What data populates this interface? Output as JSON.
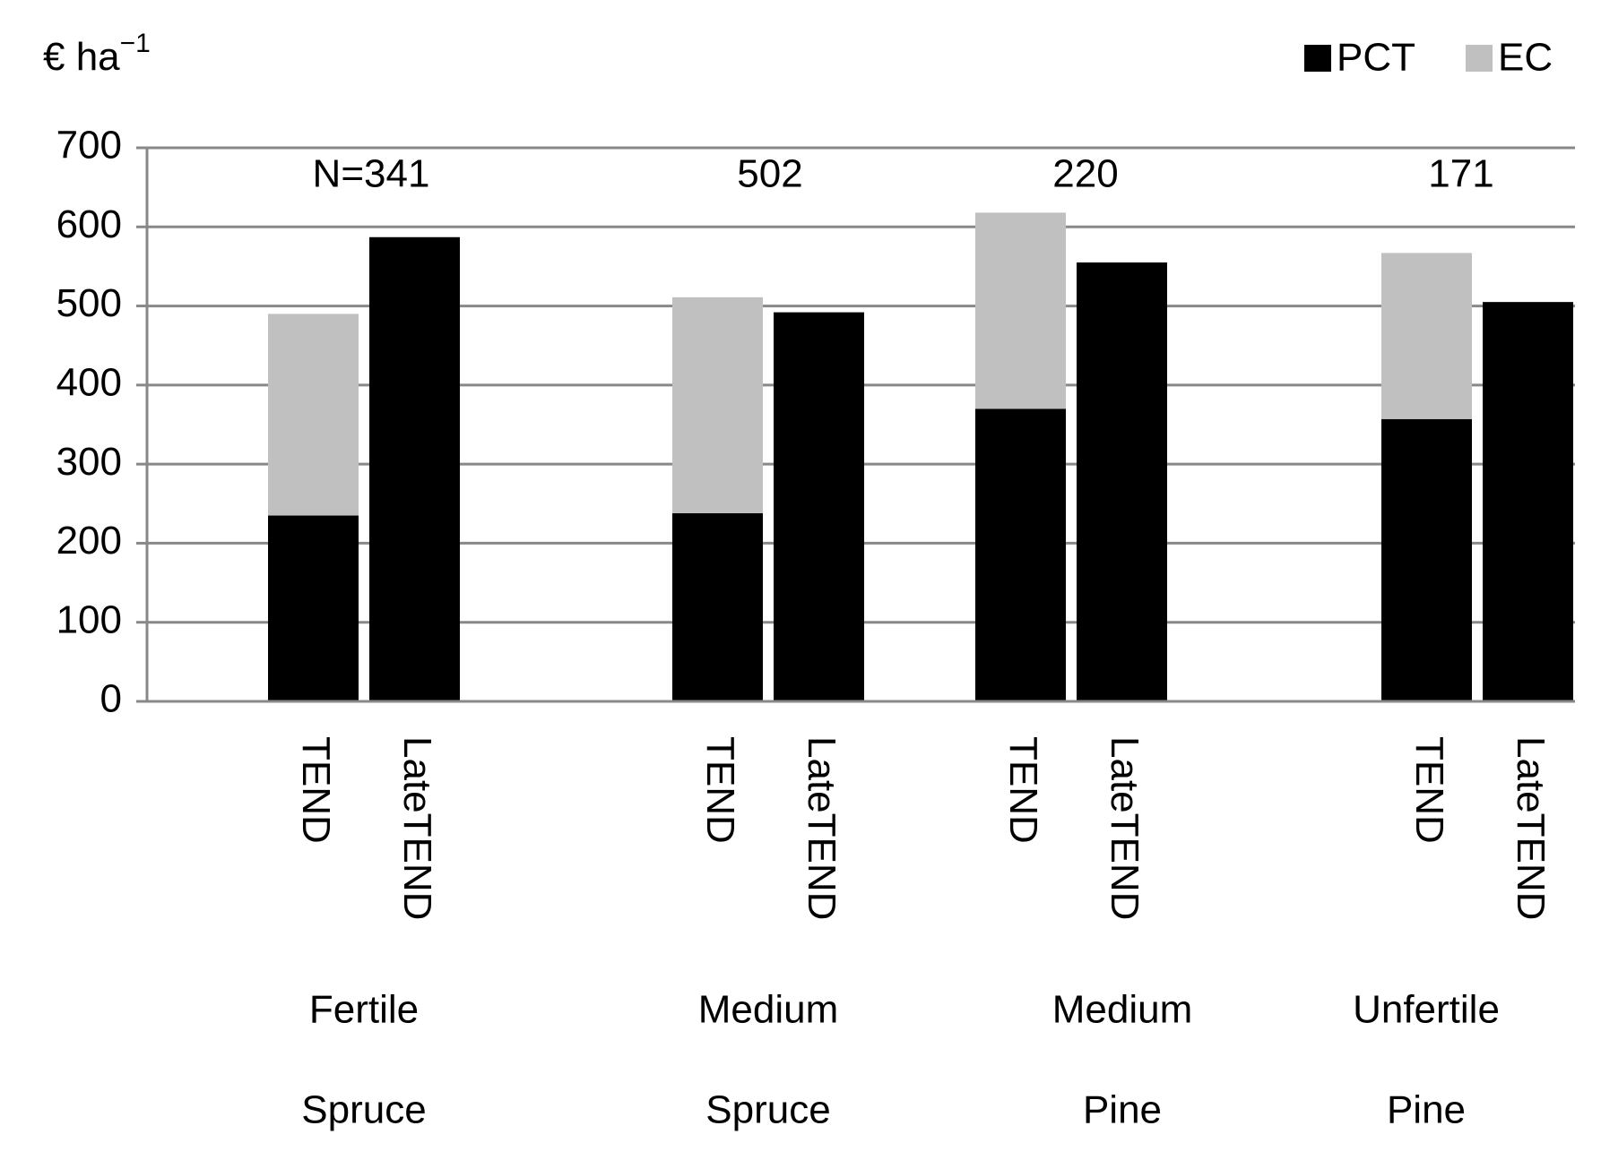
{
  "chart_data": {
    "type": "stacked_bar",
    "y_label": "€ ha",
    "y_label_exponent": "−1",
    "categories": [
      "TEND",
      "LateTEND",
      "TEND",
      "LateTEND",
      "TEND",
      "LateTEND",
      "TEND",
      "LateTEND"
    ],
    "groups": [
      {
        "label_lines": [
          "Fertile",
          "Spruce"
        ],
        "annotation": "N=341"
      },
      {
        "label_lines": [
          "Medium",
          "Spruce"
        ],
        "annotation": "502"
      },
      {
        "label_lines": [
          "Medium",
          "Pine"
        ],
        "annotation": "220"
      },
      {
        "label_lines": [
          "Unfertile",
          "Pine"
        ],
        "annotation": "171"
      }
    ],
    "series": [
      {
        "name": "PCT",
        "color": "#000000",
        "values": [
          235,
          587,
          238,
          492,
          370,
          555,
          357,
          505
        ]
      },
      {
        "name": "EC",
        "color": "#c0c0c0",
        "values": [
          255,
          null,
          273,
          null,
          248,
          null,
          210,
          null
        ]
      }
    ],
    "ylim": [
      0,
      700
    ],
    "yticks": [
      0,
      100,
      200,
      300,
      400,
      500,
      600,
      700
    ],
    "grid": true,
    "legend": "top-right"
  }
}
